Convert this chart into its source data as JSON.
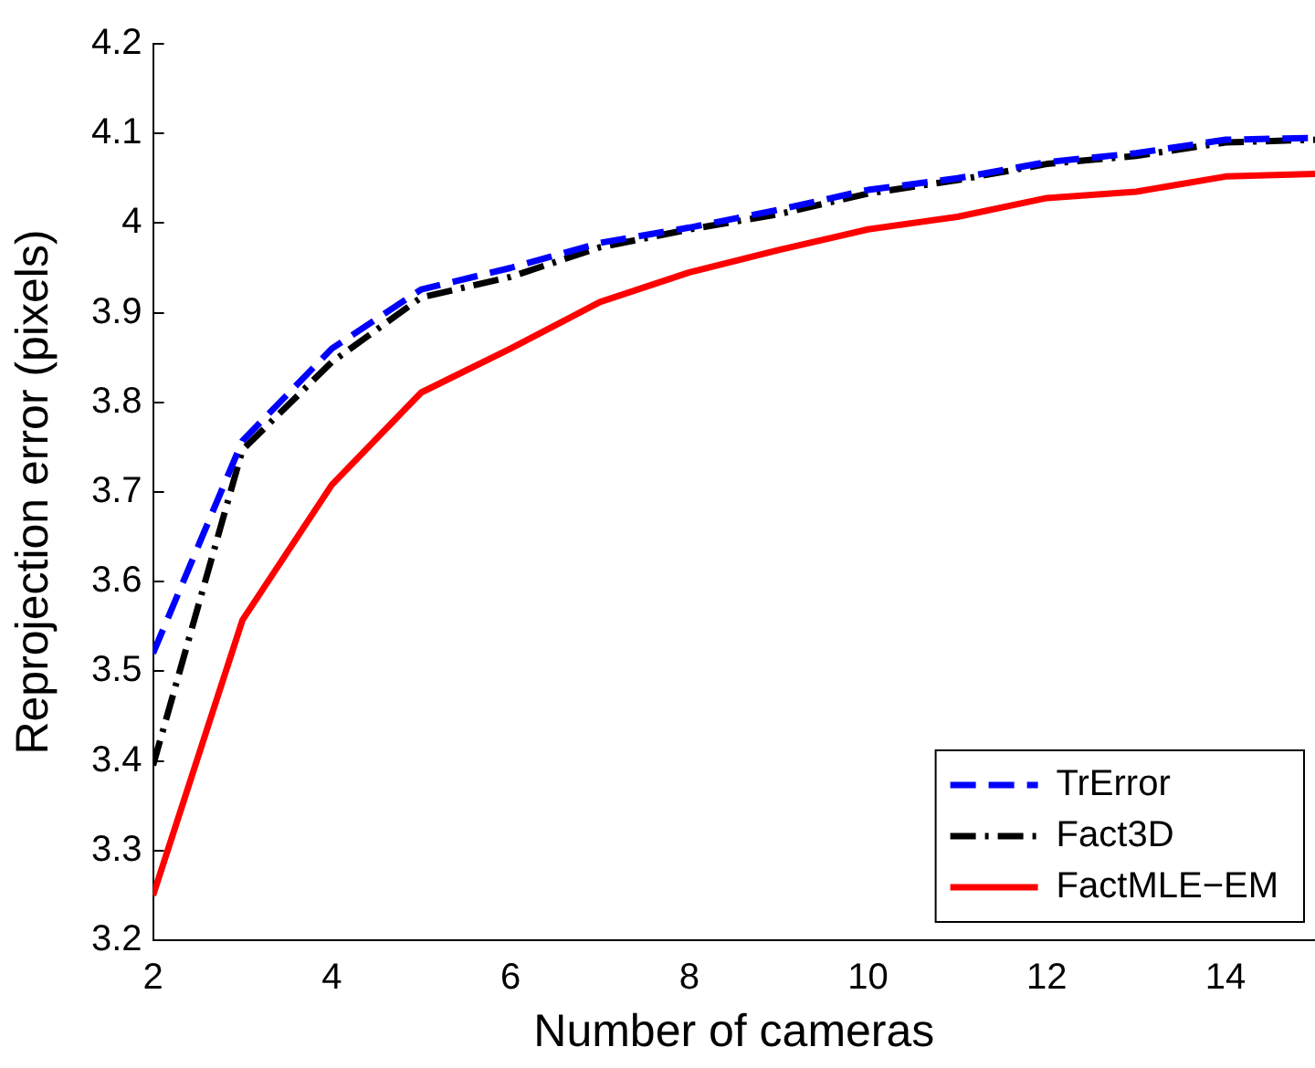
{
  "chart_data": {
    "type": "line",
    "xlabel": "Number of cameras",
    "ylabel": "Reprojection error (pixels)",
    "x": [
      2,
      3,
      4,
      5,
      6,
      7,
      8,
      9,
      10,
      11,
      12,
      13,
      14,
      15
    ],
    "series": [
      {
        "name": "TrError",
        "color": "#0000ff",
        "line_style": "dashed",
        "values": [
          3.52,
          3.757,
          3.86,
          3.926,
          3.95,
          3.978,
          3.995,
          4.015,
          4.037,
          4.05,
          4.068,
          4.078,
          4.093,
          4.095
        ]
      },
      {
        "name": "Fact3D",
        "color": "#000000",
        "line_style": "dashdot",
        "values": [
          3.395,
          3.747,
          3.845,
          3.917,
          3.94,
          3.973,
          3.993,
          4.01,
          4.033,
          4.048,
          4.066,
          4.075,
          4.09,
          4.093
        ]
      },
      {
        "name": "FactMLE−EM",
        "color": "#ff0000",
        "line_style": "solid",
        "values": [
          3.25,
          3.557,
          3.708,
          3.811,
          3.86,
          3.912,
          3.945,
          3.97,
          3.993,
          4.007,
          4.028,
          4.035,
          4.052,
          4.055
        ]
      }
    ],
    "xlim": [
      2,
      15
    ],
    "xticks": [
      2,
      4,
      6,
      8,
      10,
      12,
      14
    ],
    "ylim": [
      3.2,
      4.2
    ],
    "yticks": [
      3.2,
      3.3,
      3.4,
      3.5,
      3.6,
      3.7,
      3.8,
      3.9,
      4,
      4.1,
      4.2
    ],
    "grid": false,
    "legend": "bottom right",
    "marker": "none"
  }
}
